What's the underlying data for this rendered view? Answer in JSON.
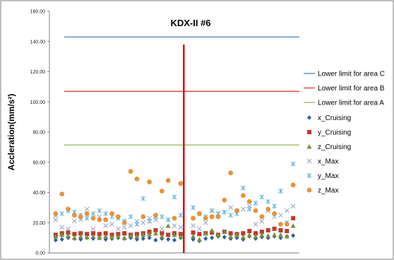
{
  "chart_data": {
    "type": "scatter",
    "title": "KDX-II #6",
    "ylabel": "Accleration(mm/s²)",
    "xlabel": "",
    "ylim": [
      0,
      160
    ],
    "yticks": [
      "0.00",
      "20.00",
      "40.00",
      "60.00",
      "80.00",
      "100.00",
      "120.00",
      "140.00",
      "160.00"
    ],
    "grid": false,
    "legend_position": "right",
    "divider_x": 21.5,
    "xlim": [
      0,
      40
    ],
    "colors": {
      "limit_c": "#4f81bd",
      "limit_b": "#e0403c",
      "limit_a": "#9bbb59",
      "x_cruising": "#2e5fa3",
      "y_cruising": "#c0392b",
      "z_cruising": "#77933c",
      "x_max": "#8ea6c8",
      "y_max": "#5bb3d6",
      "z_max": "#e8923a",
      "divider": "#e00000"
    },
    "lines": [
      {
        "name": "Lower limit for area C",
        "value": 143
      },
      {
        "name": "Lower limit for area B",
        "value": 107
      },
      {
        "name": "Lower limit for area A",
        "value": 71.5
      }
    ],
    "series": [
      {
        "name": "x_Cruising",
        "marker": "diamond",
        "x": [
          1,
          2,
          3,
          4,
          5,
          6,
          7,
          8,
          9,
          10,
          11,
          12,
          13,
          14,
          15,
          16,
          17,
          18,
          19,
          20,
          21,
          23,
          24,
          25,
          26,
          27,
          28,
          29,
          30,
          31,
          32,
          33,
          34,
          35,
          36,
          37,
          38,
          39
        ],
        "values": [
          8.5,
          9,
          10,
          9.5,
          9,
          10,
          9.5,
          10,
          9,
          9.5,
          10,
          9.5,
          10,
          9,
          9.5,
          10,
          8.5,
          9.5,
          9,
          8.5,
          10,
          9,
          8,
          9.5,
          10,
          11,
          10.5,
          9.5,
          10,
          9,
          11,
          9.5,
          10.5,
          10,
          11,
          10,
          11,
          11.5
        ]
      },
      {
        "name": "y_Cruising",
        "marker": "square",
        "x": [
          1,
          2,
          3,
          4,
          5,
          6,
          7,
          8,
          9,
          10,
          11,
          12,
          13,
          14,
          15,
          16,
          17,
          18,
          19,
          20,
          21,
          23,
          24,
          25,
          26,
          27,
          28,
          29,
          30,
          31,
          32,
          33,
          34,
          35,
          36,
          37,
          38,
          39
        ],
        "values": [
          12,
          13,
          13.5,
          12.5,
          13,
          12.5,
          13,
          12.5,
          13,
          12,
          12.5,
          13,
          12,
          12.5,
          13,
          14,
          15,
          13,
          12,
          13,
          12.5,
          13.5,
          12.5,
          13,
          13.5,
          12,
          14,
          13,
          12.5,
          13,
          14.5,
          13,
          14,
          15,
          16,
          15,
          14.5,
          23
        ]
      },
      {
        "name": "z_Cruising",
        "marker": "triangle",
        "x": [
          1,
          2,
          3,
          4,
          5,
          6,
          7,
          8,
          9,
          10,
          11,
          12,
          13,
          14,
          15,
          16,
          17,
          18,
          19,
          20,
          21,
          23,
          24,
          25,
          26,
          27,
          28,
          29,
          30,
          31,
          32,
          33,
          34,
          35,
          36,
          37,
          38,
          39
        ],
        "values": [
          11,
          12,
          11.5,
          10,
          11,
          10.5,
          11,
          10,
          11,
          10.5,
          11,
          10,
          11.5,
          11,
          12,
          12.5,
          13,
          11,
          18,
          12,
          11,
          11,
          9,
          13,
          15,
          12,
          14,
          11,
          12,
          10.5,
          12,
          11,
          12,
          11.5,
          12,
          12,
          11,
          18
        ]
      },
      {
        "name": "x_Max",
        "marker": "x",
        "x": [
          1,
          2,
          3,
          4,
          5,
          6,
          7,
          8,
          9,
          10,
          11,
          12,
          13,
          14,
          15,
          16,
          17,
          18,
          19,
          20,
          21,
          23,
          24,
          25,
          26,
          27,
          28,
          29,
          30,
          31,
          32,
          33,
          34,
          35,
          36,
          37,
          38,
          39
        ],
        "values": [
          22,
          17,
          16,
          21,
          22,
          29,
          16,
          24,
          18,
          19,
          16,
          17,
          18,
          21,
          20,
          23,
          22,
          16,
          22,
          18,
          17,
          18,
          16,
          20,
          28,
          26,
          27,
          30,
          28,
          29,
          31,
          19,
          21,
          28,
          24,
          25,
          28,
          31
        ]
      },
      {
        "name": "y_Max",
        "marker": "asterisk",
        "x": [
          1,
          2,
          3,
          4,
          5,
          6,
          7,
          8,
          9,
          10,
          11,
          12,
          13,
          14,
          15,
          16,
          17,
          18,
          19,
          20,
          21,
          23,
          24,
          25,
          26,
          27,
          28,
          29,
          30,
          31,
          32,
          33,
          34,
          35,
          36,
          37,
          38,
          39
        ],
        "values": [
          25,
          26,
          28,
          27,
          25,
          23,
          26,
          28,
          26,
          24,
          23,
          21,
          24,
          19,
          36,
          21,
          24,
          24,
          22,
          37,
          25,
          30,
          26,
          24,
          28,
          26,
          27,
          25,
          26,
          43,
          29,
          33,
          37,
          34,
          31,
          41,
          20,
          59
        ]
      },
      {
        "name": "z_Max",
        "marker": "circle",
        "x": [
          1,
          2,
          3,
          4,
          5,
          6,
          7,
          8,
          9,
          10,
          11,
          12,
          13,
          14,
          15,
          16,
          17,
          18,
          19,
          20,
          21,
          23,
          24,
          25,
          26,
          27,
          28,
          29,
          30,
          31,
          32,
          33,
          34,
          35,
          36,
          37,
          38,
          39
        ],
        "values": [
          26,
          39,
          29,
          25,
          24,
          26,
          23,
          22,
          22,
          26,
          24,
          20,
          54,
          49,
          24,
          47,
          25,
          41,
          48,
          23,
          46,
          23,
          26,
          23,
          24,
          24,
          35,
          53,
          28,
          38,
          34,
          28,
          24,
          29,
          26,
          19,
          19,
          45
        ]
      }
    ]
  }
}
